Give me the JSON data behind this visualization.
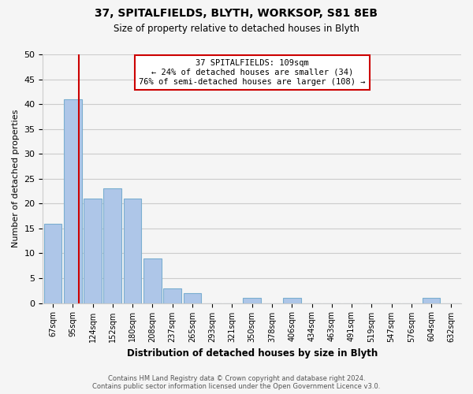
{
  "title": "37, SPITALFIELDS, BLYTH, WORKSOP, S81 8EB",
  "subtitle": "Size of property relative to detached houses in Blyth",
  "xlabel": "Distribution of detached houses by size in Blyth",
  "ylabel": "Number of detached properties",
  "bin_labels": [
    "67sqm",
    "95sqm",
    "124sqm",
    "152sqm",
    "180sqm",
    "208sqm",
    "237sqm",
    "265sqm",
    "293sqm",
    "321sqm",
    "350sqm",
    "378sqm",
    "406sqm",
    "434sqm",
    "463sqm",
    "491sqm",
    "519sqm",
    "547sqm",
    "576sqm",
    "604sqm",
    "632sqm"
  ],
  "values": [
    16,
    41,
    21,
    23,
    21,
    9,
    3,
    2,
    0,
    0,
    1,
    0,
    1,
    0,
    0,
    0,
    0,
    0,
    0,
    1,
    0
  ],
  "bar_color": "#aec6e8",
  "bar_edge_color": "#7aaed0",
  "property_line_color": "#cc0000",
  "annotation_title": "37 SPITALFIELDS: 109sqm",
  "annotation_line1": "← 24% of detached houses are smaller (34)",
  "annotation_line2": "76% of semi-detached houses are larger (108) →",
  "annotation_box_color": "#ffffff",
  "annotation_box_edge": "#cc0000",
  "ylim": [
    0,
    50
  ],
  "yticks": [
    0,
    5,
    10,
    15,
    20,
    25,
    30,
    35,
    40,
    45,
    50
  ],
  "footer_line1": "Contains HM Land Registry data © Crown copyright and database right 2024.",
  "footer_line2": "Contains public sector information licensed under the Open Government Licence v3.0.",
  "background_color": "#f5f5f5",
  "title_fontsize": 10,
  "subtitle_fontsize": 8.5
}
